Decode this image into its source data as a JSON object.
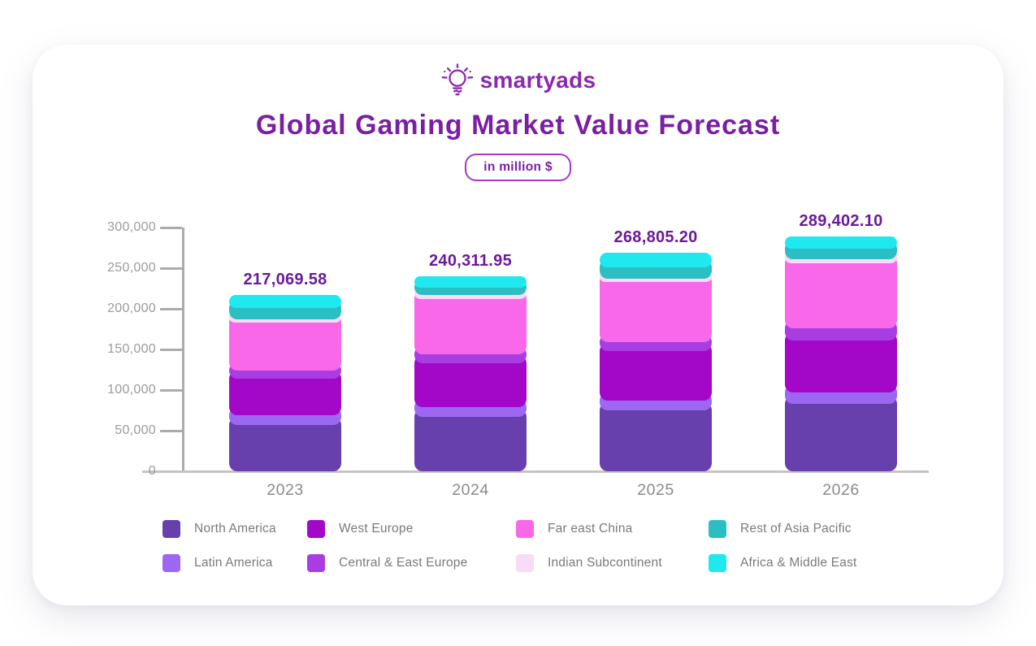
{
  "logo": {
    "text": "smartyads",
    "color": "#8D27B0",
    "icon": "lightbulb-icon"
  },
  "title": {
    "text": "Global Gaming Market Value Forecast",
    "color": "#7B1FA2"
  },
  "badge": {
    "text": "in million $"
  },
  "chart_data": {
    "type": "bar",
    "stacked": true,
    "title": "Global Gaming Market Value Forecast",
    "unit": "in million $",
    "categories": [
      "2023",
      "2024",
      "2025",
      "2026"
    ],
    "totals": [
      217069.58,
      240311.95,
      268805.2,
      289402.1
    ],
    "totals_labels": [
      "217,069.58",
      "240,311.95",
      "268,805.20",
      "289,402.10"
    ],
    "series": [
      {
        "name": "North America",
        "color": "#6840AE",
        "values": [
          67000,
          77000,
          85000,
          93000
        ]
      },
      {
        "name": "Latin America",
        "color": "#9C68F2",
        "values": [
          12000,
          12500,
          12500,
          14000
        ]
      },
      {
        "name": "West Europe",
        "color": "#A308C8",
        "values": [
          45500,
          53500,
          61000,
          64500
        ]
      },
      {
        "name": "Central & East Europe",
        "color": "#A83EE2",
        "values": [
          10000,
          11000,
          11000,
          15000
        ]
      },
      {
        "name": "Far east China",
        "color": "#F968E8",
        "values": [
          58500,
          68500,
          74000,
          79500
        ]
      },
      {
        "name": "Indian Subcontinent",
        "color": "#F8DBF5",
        "values": [
          4500,
          4500,
          4000,
          5500
        ]
      },
      {
        "name": "Rest of Asia Pacific",
        "color": "#2BBFC4",
        "values": [
          13500,
          9500,
          13500,
          13000
        ]
      },
      {
        "name": "Africa & Middle East",
        "color": "#1FE9EF",
        "values": [
          6069.58,
          3811.95,
          7805.2,
          4902.1
        ]
      }
    ],
    "legend": {
      "rows": [
        [
          "North America",
          "West Europe",
          "Far east China",
          "Rest of Asia Pacific"
        ],
        [
          "Latin America",
          "Central & East Europe",
          "Indian Subcontinent",
          "Africa & Middle East"
        ]
      ]
    },
    "ylim": [
      0,
      300000
    ],
    "yticks": [
      0,
      50000,
      100000,
      150000,
      200000,
      250000,
      300000
    ],
    "ytick_labels": [
      "0",
      "50,000",
      "100,000",
      "150,000",
      "200,000",
      "250,000",
      "300,000"
    ],
    "grid": false,
    "legend_position": "bottom"
  }
}
